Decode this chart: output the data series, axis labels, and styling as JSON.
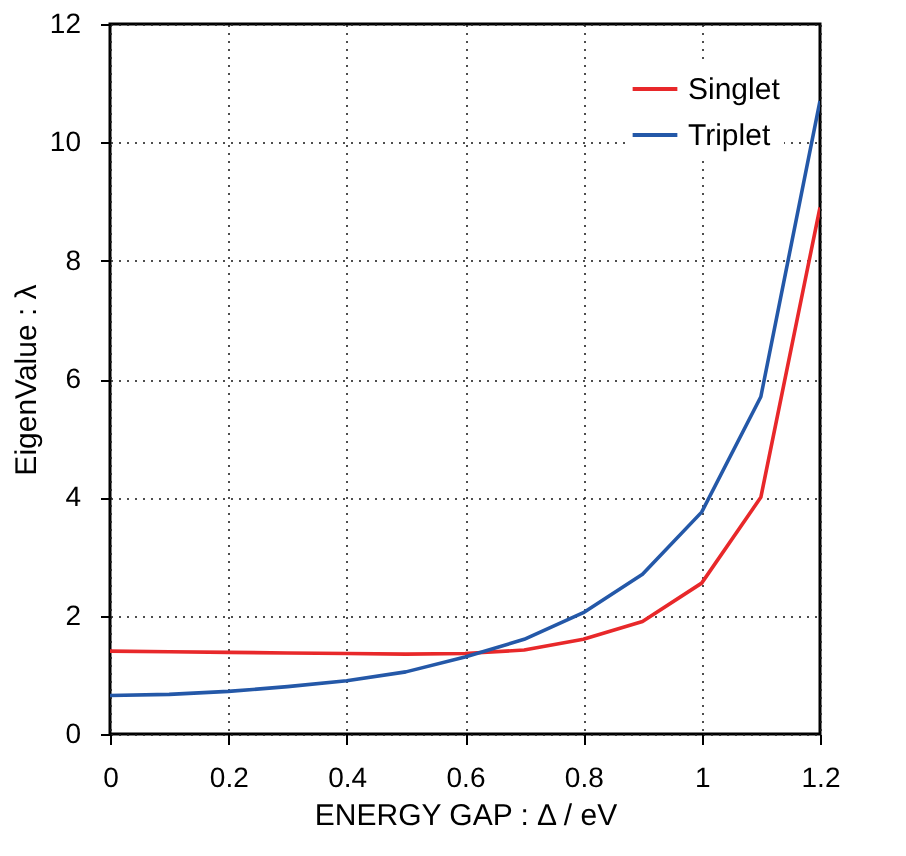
{
  "chart_data": {
    "type": "line",
    "xlabel": "ENERGY GAP : Δ / eV",
    "ylabel": "EigenValue : λ",
    "x": [
      0,
      0.1,
      0.2,
      0.3,
      0.4,
      0.5,
      0.6,
      0.7,
      0.8,
      0.9,
      1.0,
      1.1,
      1.2
    ],
    "series": [
      {
        "name": "Singlet",
        "color": "#e8282a",
        "values": [
          1.4,
          1.39,
          1.38,
          1.37,
          1.36,
          1.35,
          1.36,
          1.42,
          1.6,
          1.9,
          2.55,
          4.0,
          8.9
        ]
      },
      {
        "name": "Triplet",
        "color": "#2458a8",
        "values": [
          0.65,
          0.67,
          0.72,
          0.8,
          0.9,
          1.05,
          1.3,
          1.6,
          2.05,
          2.7,
          3.75,
          5.7,
          10.7
        ]
      }
    ],
    "xlim": [
      0,
      1.2
    ],
    "xticks": [
      0,
      0.2,
      0.4,
      0.6,
      0.8,
      1,
      1.2
    ],
    "ylim": [
      0,
      12
    ],
    "yticks": [
      0,
      2,
      4,
      6,
      8,
      10,
      12
    ],
    "grid": true,
    "legend": "top right",
    "marker": "none",
    "line_style": "solid"
  }
}
